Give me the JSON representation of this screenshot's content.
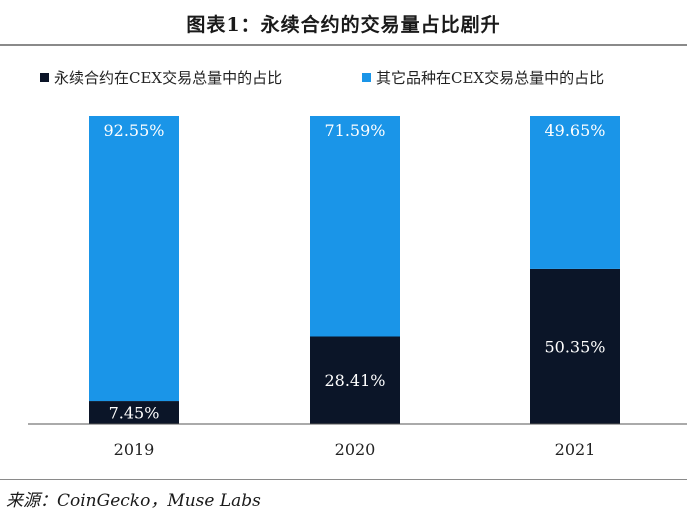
{
  "header": {
    "title": "图表1：永续合约的交易量占比剧升"
  },
  "footer": {
    "source": "来源：CoinGecko，Muse Labs"
  },
  "chart_data": {
    "type": "bar",
    "stacked": true,
    "categories": [
      "2019",
      "2020",
      "2021"
    ],
    "series": [
      {
        "name": "永续合约在CEX交易总量中的占比",
        "values": [
          7.45,
          28.41,
          50.35
        ],
        "labels": [
          "7.45%",
          "28.41%",
          "50.35%"
        ],
        "color": "#0b1528"
      },
      {
        "name": "其它品种在CEX交易总量中的占比",
        "values": [
          92.55,
          71.59,
          49.65
        ],
        "labels": [
          "92.55%",
          "71.59%",
          "49.65%"
        ],
        "color": "#1a95e8"
      }
    ],
    "ylim": [
      0,
      100
    ],
    "legend_position": "top",
    "grid": false,
    "xlabel": "",
    "ylabel": ""
  }
}
